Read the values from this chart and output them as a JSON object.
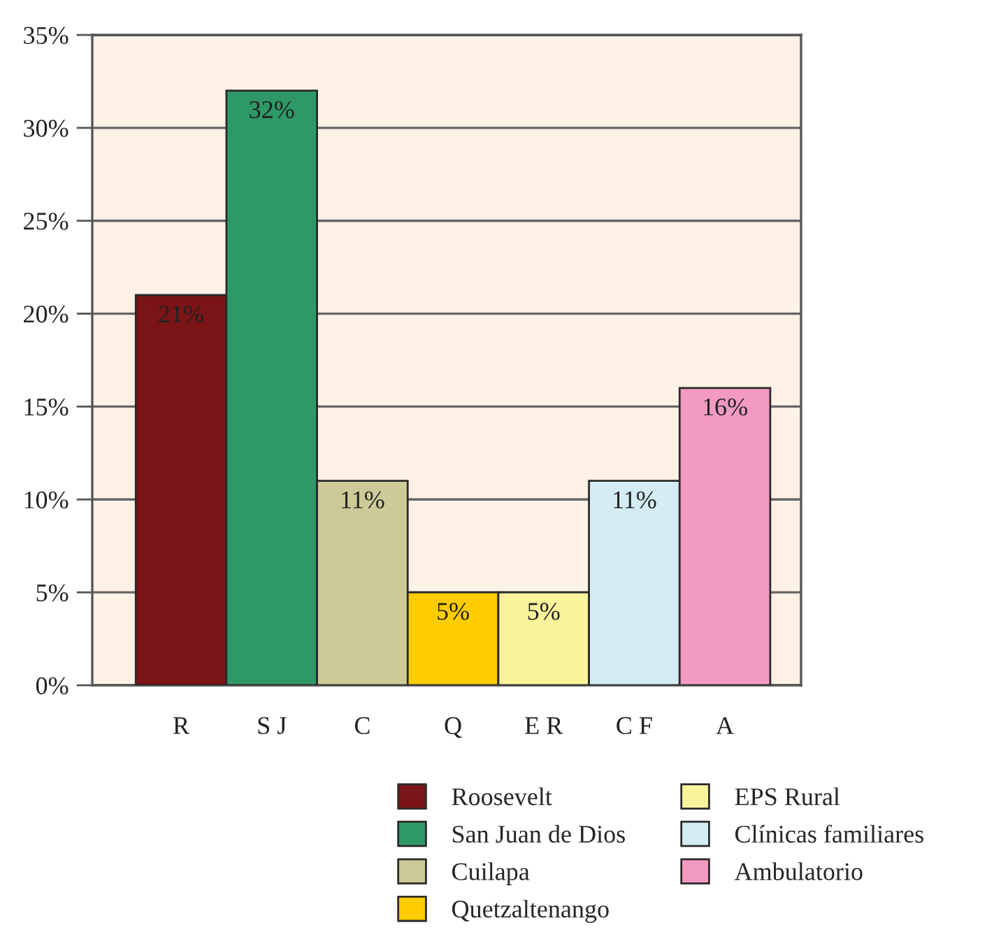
{
  "chart_data": {
    "type": "bar",
    "categories": [
      "R",
      "S J",
      "C",
      "Q",
      "E R",
      "C F",
      "A"
    ],
    "series": [
      {
        "name": "Roosevelt",
        "color": "#7b1416",
        "values": [
          21,
          null,
          null,
          null,
          null,
          null,
          null
        ],
        "value_labels": [
          "21%",
          null,
          null,
          null,
          null,
          null,
          null
        ]
      },
      {
        "name": "San Juan de Dios",
        "color": "#2e9966",
        "values": [
          null,
          32,
          null,
          null,
          null,
          null,
          null
        ],
        "value_labels": [
          null,
          "32%",
          null,
          null,
          null,
          null,
          null
        ]
      },
      {
        "name": "Cuilapa",
        "color": "#cccb98",
        "values": [
          null,
          null,
          11,
          null,
          null,
          null,
          null
        ],
        "value_labels": [
          null,
          null,
          "11%",
          null,
          null,
          null,
          null
        ]
      },
      {
        "name": "Quetzaltenango",
        "color": "#fecc00",
        "values": [
          null,
          null,
          null,
          5,
          null,
          null,
          null
        ],
        "value_labels": [
          null,
          null,
          null,
          "5%",
          null,
          null,
          null
        ]
      },
      {
        "name": "EPS Rural",
        "color": "#f9f49c",
        "values": [
          null,
          null,
          null,
          null,
          5,
          null,
          null
        ],
        "value_labels": [
          null,
          null,
          null,
          null,
          "5%",
          null,
          null
        ]
      },
      {
        "name": "Clínicas familiares",
        "color": "#d4ecf3",
        "values": [
          null,
          null,
          null,
          null,
          null,
          11,
          null
        ],
        "value_labels": [
          null,
          null,
          null,
          null,
          null,
          "11%",
          null
        ]
      },
      {
        "name": "Ambulatorio",
        "color": "#f39ac2",
        "values": [
          null,
          null,
          null,
          null,
          null,
          null,
          16
        ],
        "value_labels": [
          null,
          null,
          null,
          null,
          null,
          null,
          "16%"
        ]
      }
    ],
    "ylim": [
      0,
      35
    ],
    "yticks": [
      {
        "value": 0,
        "label": "0%"
      },
      {
        "value": 5,
        "label": "5%"
      },
      {
        "value": 10,
        "label": "10%"
      },
      {
        "value": 15,
        "label": "15%"
      },
      {
        "value": 20,
        "label": "20%"
      },
      {
        "value": 25,
        "label": "25%"
      },
      {
        "value": 30,
        "label": "30%"
      },
      {
        "value": 35,
        "label": "35%"
      }
    ],
    "grid": "y",
    "legend": "bottom"
  }
}
